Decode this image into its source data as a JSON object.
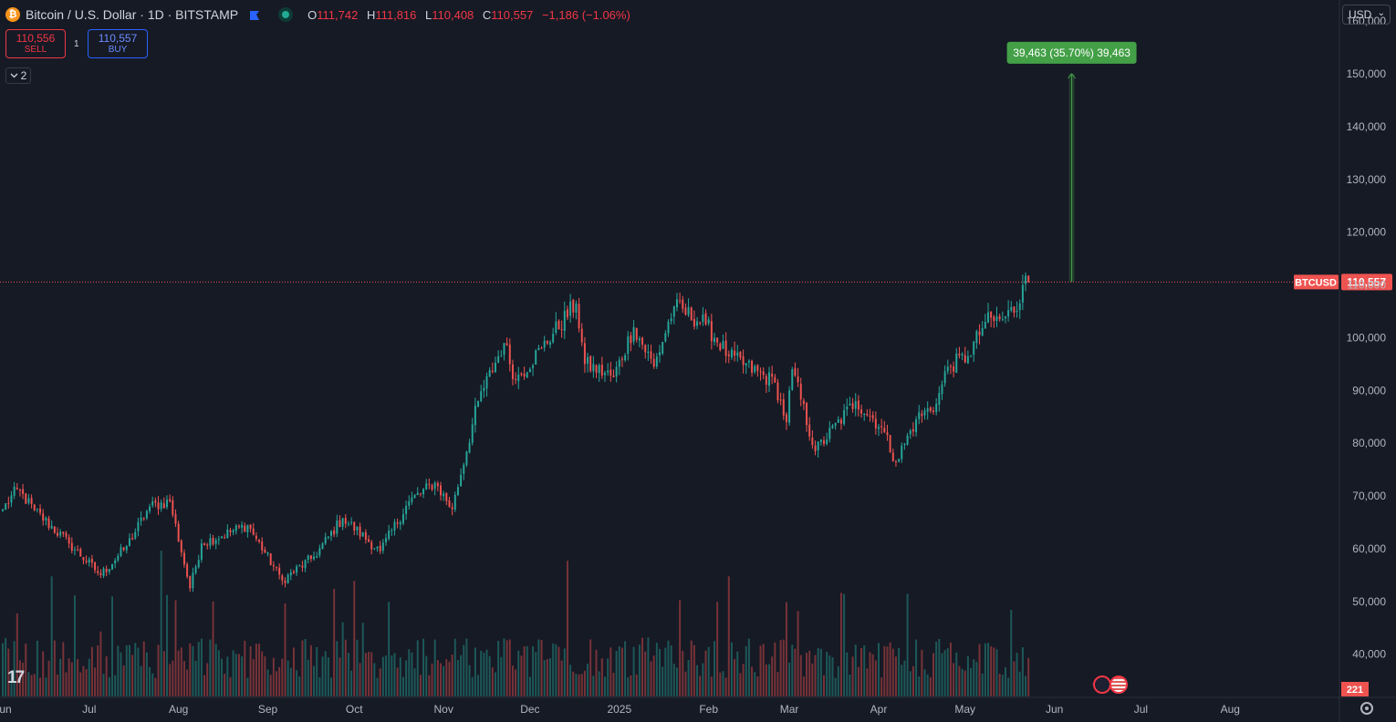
{
  "header": {
    "symbol_title": "Bitcoin / U.S. Dollar · 1D · BITSTAMP",
    "logo_glyph": "₿",
    "ohlc": [
      {
        "k": "O",
        "v": "111,742"
      },
      {
        "k": "H",
        "v": "111,816"
      },
      {
        "k": "L",
        "v": "110,408"
      },
      {
        "k": "C",
        "v": "110,557"
      }
    ],
    "change": "−1,186 (−1.06%)"
  },
  "trade": {
    "sell_price": "110,556",
    "sell_label": "SELL",
    "spread": "1",
    "buy_price": "110,557",
    "buy_label": "BUY"
  },
  "collapse_label": "2",
  "currency": "USD",
  "tv_logo": "17",
  "colors": {
    "background": "#161a25",
    "up": "#26a69a",
    "down": "#ef5350",
    "text": "#b2b5be",
    "measure": "#43a047"
  },
  "chart_data": {
    "type": "candlestick",
    "title": "Bitcoin / U.S. Dollar · 1D · BITSTAMP",
    "last_price": 110557,
    "last_label": "BTCUSD",
    "last_price_label": "110,557",
    "volume_label": "221",
    "ylim": [
      32000,
      164000
    ],
    "y_ticks": [
      {
        "v": 40000,
        "label": "40,000"
      },
      {
        "v": 50000,
        "label": "50,000"
      },
      {
        "v": 60000,
        "label": "60,000"
      },
      {
        "v": 70000,
        "label": "70,000"
      },
      {
        "v": 80000,
        "label": "80,000"
      },
      {
        "v": 90000,
        "label": "90,000"
      },
      {
        "v": 100000,
        "label": "100,000"
      },
      {
        "v": 110000,
        "label": "110,000"
      },
      {
        "v": 120000,
        "label": "120,000"
      },
      {
        "v": 130000,
        "label": "130,000"
      },
      {
        "v": 140000,
        "label": "140,000"
      },
      {
        "v": 150000,
        "label": "150,000"
      },
      {
        "v": 160000,
        "label": "160,000"
      }
    ],
    "x_ticks": [
      {
        "date": "2024-06-01",
        "label": "Jun"
      },
      {
        "date": "2024-07-01",
        "label": "Jul"
      },
      {
        "date": "2024-08-01",
        "label": "Aug"
      },
      {
        "date": "2024-09-01",
        "label": "Sep"
      },
      {
        "date": "2024-10-01",
        "label": "Oct"
      },
      {
        "date": "2024-11-01",
        "label": "Nov"
      },
      {
        "date": "2024-12-01",
        "label": "Dec"
      },
      {
        "date": "2025-01-01",
        "label": "2025"
      },
      {
        "date": "2025-02-01",
        "label": "Feb"
      },
      {
        "date": "2025-03-01",
        "label": "Mar"
      },
      {
        "date": "2025-04-01",
        "label": "Apr"
      },
      {
        "date": "2025-05-01",
        "label": "May"
      },
      {
        "date": "2025-06-01",
        "label": "Jun"
      },
      {
        "date": "2025-07-01",
        "label": "Jul"
      },
      {
        "date": "2025-08-01",
        "label": "Aug"
      }
    ],
    "x_range": [
      "2024-06-01",
      "2025-08-31"
    ],
    "price_anchors": [
      [
        "2024-06-01",
        67500
      ],
      [
        "2024-06-06",
        71300
      ],
      [
        "2024-06-12",
        67300
      ],
      [
        "2024-06-24",
        61000
      ],
      [
        "2024-07-05",
        55000
      ],
      [
        "2024-07-14",
        60500
      ],
      [
        "2024-07-22",
        68000
      ],
      [
        "2024-07-29",
        69000
      ],
      [
        "2024-08-05",
        52500
      ],
      [
        "2024-08-09",
        61000
      ],
      [
        "2024-08-25",
        64500
      ],
      [
        "2024-09-06",
        54000
      ],
      [
        "2024-09-17",
        58500
      ],
      [
        "2024-09-27",
        65800
      ],
      [
        "2024-10-10",
        59500
      ],
      [
        "2024-10-20",
        69000
      ],
      [
        "2024-10-29",
        72500
      ],
      [
        "2024-11-04",
        67500
      ],
      [
        "2024-11-13",
        88000
      ],
      [
        "2024-11-22",
        99000
      ],
      [
        "2024-11-26",
        92000
      ],
      [
        "2024-12-05",
        98000
      ],
      [
        "2024-12-17",
        106500
      ],
      [
        "2024-12-20",
        95000
      ],
      [
        "2024-12-30",
        92500
      ],
      [
        "2025-01-06",
        102000
      ],
      [
        "2025-01-13",
        94500
      ],
      [
        "2025-01-20",
        106000
      ],
      [
        "2025-01-31",
        102500
      ],
      [
        "2025-02-08",
        96500
      ],
      [
        "2025-02-24",
        91500
      ],
      [
        "2025-02-28",
        84000
      ],
      [
        "2025-03-02",
        94000
      ],
      [
        "2025-03-10",
        78500
      ],
      [
        "2025-03-24",
        88000
      ],
      [
        "2025-04-02",
        83000
      ],
      [
        "2025-04-07",
        76500
      ],
      [
        "2025-04-14",
        84500
      ],
      [
        "2025-04-21",
        87500
      ],
      [
        "2025-04-25",
        94500
      ],
      [
        "2025-05-02",
        96500
      ],
      [
        "2025-05-08",
        103000
      ],
      [
        "2025-05-14",
        103500
      ],
      [
        "2025-05-20",
        106500
      ],
      [
        "2025-05-21",
        110000
      ],
      [
        "2025-05-22",
        111742
      ],
      [
        "2025-05-23",
        110557
      ]
    ],
    "measure": {
      "from": 110557,
      "to": 150020,
      "date": "2025-06-07",
      "label": "39,463 (35.70%) 39,463"
    }
  }
}
